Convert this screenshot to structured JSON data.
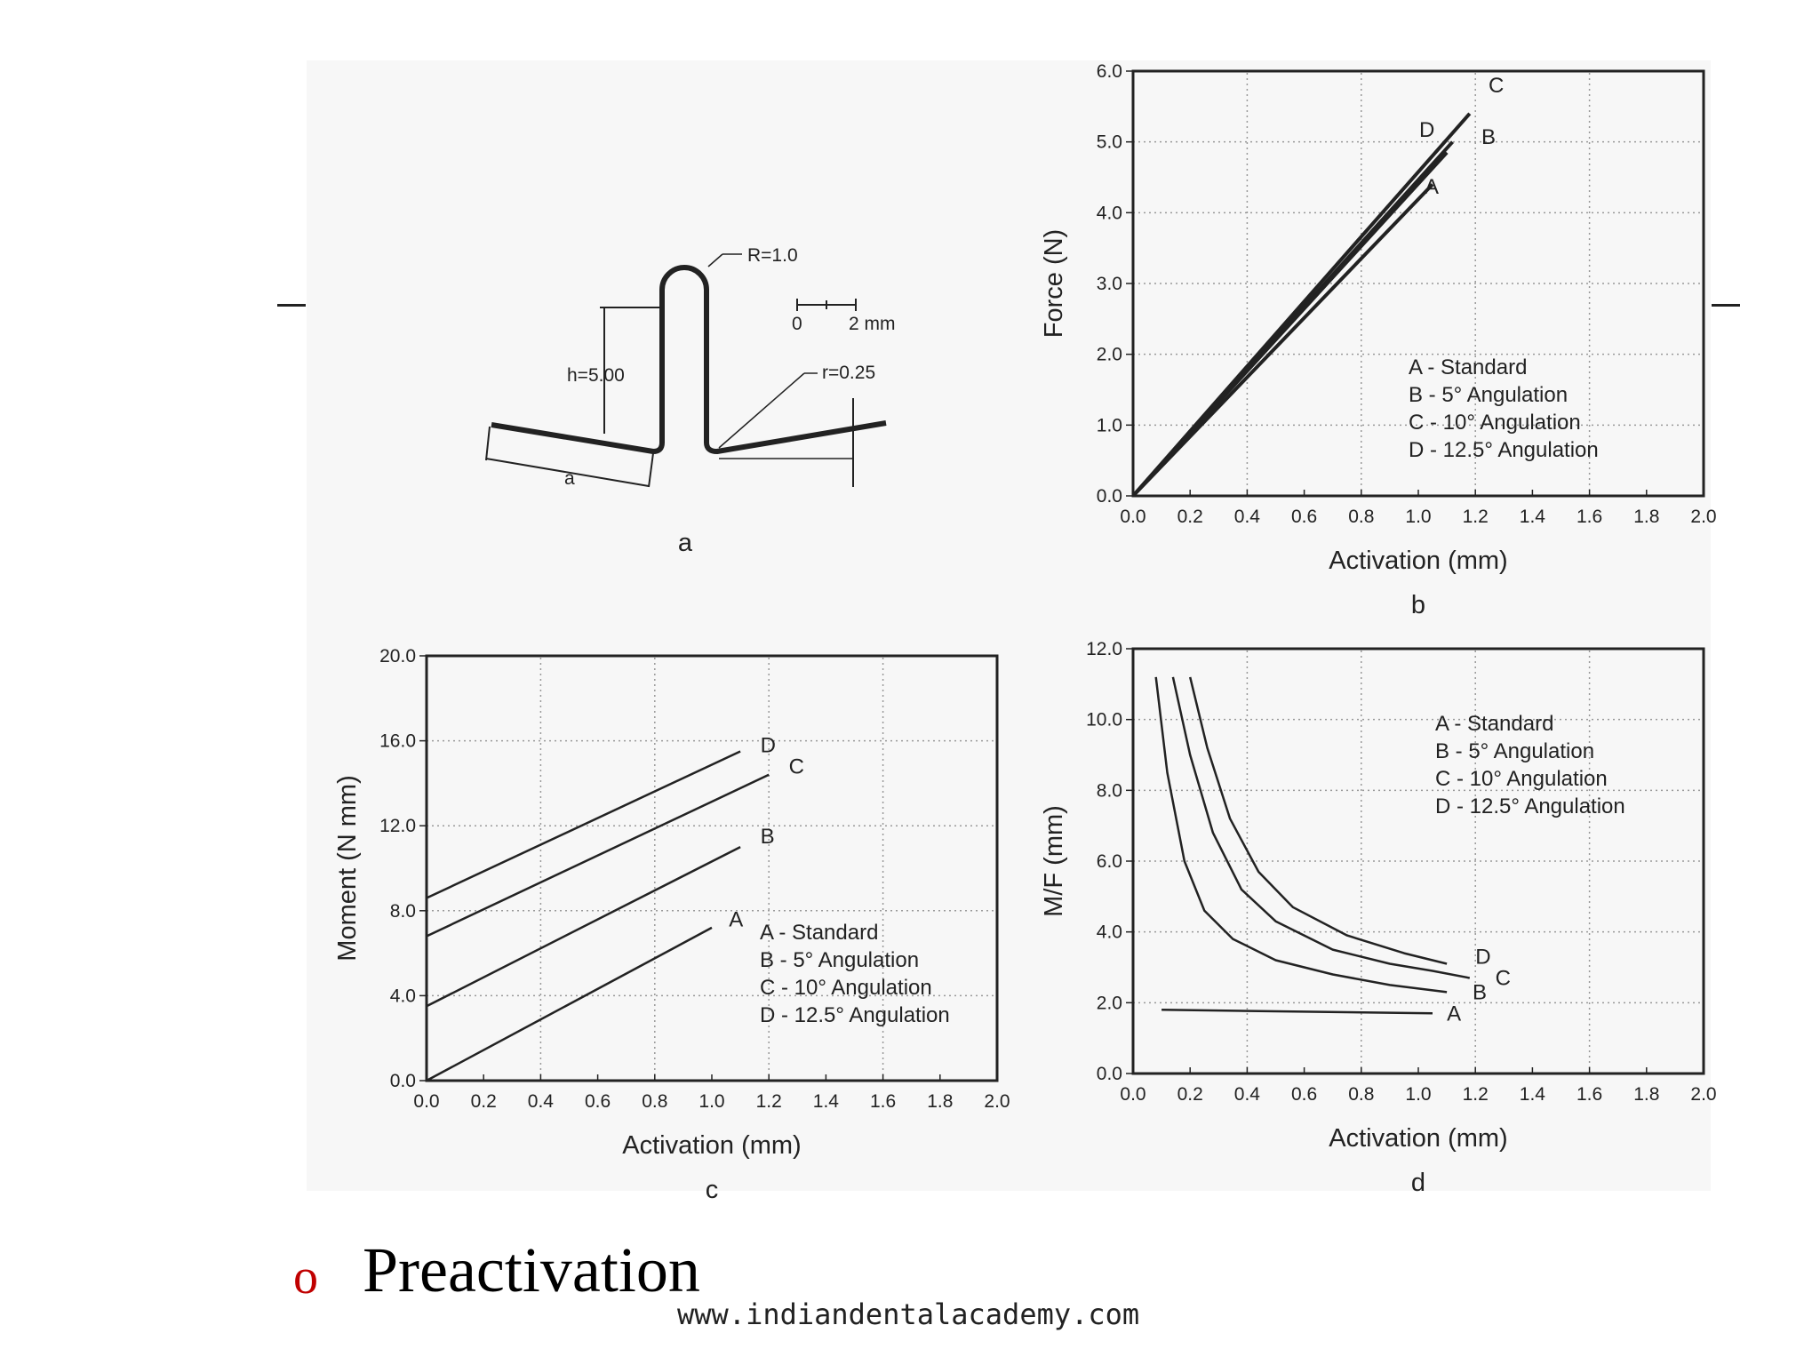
{
  "slide": {
    "bullet_marker": "o",
    "bullet_text": "Preactivation",
    "footer": "www.indiandentalacademy.com",
    "bullet_color": "#c00000"
  },
  "diagram": {
    "label": "a",
    "R_label": "R=1.0",
    "h_label": "h=5.00",
    "r_label": "r=0.25",
    "a_label": "a",
    "scale_zero": "0",
    "scale_label": "2 mm"
  },
  "legend_items": [
    "A - Standard",
    "B - 5° Angulation",
    "C - 10° Angulation",
    "D - 12.5° Angulation"
  ],
  "chart_data": [
    {
      "id": "b",
      "type": "line",
      "sublabel": "b",
      "xlabel": "Activation (mm)",
      "ylabel": "Force (N)",
      "xlim": [
        0,
        2.0
      ],
      "ylim": [
        0,
        6.0
      ],
      "xticks": [
        "0.0",
        "0.2",
        "0.4",
        "0.6",
        "0.8",
        "1.0",
        "1.2",
        "1.4",
        "1.6",
        "1.8",
        "2.0"
      ],
      "yticks": [
        "0.0",
        "1.0",
        "2.0",
        "3.0",
        "4.0",
        "5.0",
        "6.0"
      ],
      "grid": true,
      "legend_position": "right",
      "series": [
        {
          "name": "A",
          "x": [
            0,
            1.05
          ],
          "y": [
            0,
            4.4
          ]
        },
        {
          "name": "B",
          "x": [
            0,
            1.12
          ],
          "y": [
            0,
            5.0
          ]
        },
        {
          "name": "C",
          "x": [
            0,
            1.18
          ],
          "y": [
            0,
            5.4
          ]
        },
        {
          "name": "D",
          "x": [
            0,
            1.1
          ],
          "y": [
            0,
            4.85
          ]
        }
      ]
    },
    {
      "id": "c",
      "type": "line",
      "sublabel": "c",
      "xlabel": "Activation (mm)",
      "ylabel": "Moment (N mm)",
      "xlim": [
        0,
        2.0
      ],
      "ylim": [
        0,
        20.0
      ],
      "xticks": [
        "0.0",
        "0.2",
        "0.4",
        "0.6",
        "0.8",
        "1.0",
        "1.2",
        "1.4",
        "1.6",
        "1.8",
        "2.0"
      ],
      "yticks": [
        "0.0",
        "4.0",
        "8.0",
        "12.0",
        "16.0",
        "20.0"
      ],
      "grid": true,
      "legend_position": "bottom-right",
      "series": [
        {
          "name": "A",
          "x": [
            0,
            1.0
          ],
          "y": [
            0,
            7.2
          ]
        },
        {
          "name": "B",
          "x": [
            0,
            1.1
          ],
          "y": [
            3.5,
            11.0
          ]
        },
        {
          "name": "C",
          "x": [
            0,
            1.2
          ],
          "y": [
            6.8,
            14.4
          ]
        },
        {
          "name": "D",
          "x": [
            0,
            1.1
          ],
          "y": [
            8.6,
            15.5
          ]
        }
      ]
    },
    {
      "id": "d",
      "type": "line",
      "sublabel": "d",
      "xlabel": "Activation (mm)",
      "ylabel": "M/F (mm)",
      "xlim": [
        0,
        2.0
      ],
      "ylim": [
        0,
        12.0
      ],
      "xticks": [
        "0.0",
        "0.2",
        "0.4",
        "0.6",
        "0.8",
        "1.0",
        "1.2",
        "1.4",
        "1.6",
        "1.8",
        "2.0"
      ],
      "yticks": [
        "0.0",
        "2.0",
        "4.0",
        "6.0",
        "8.0",
        "10.0",
        "12.0"
      ],
      "grid": true,
      "legend_position": "top-right",
      "series": [
        {
          "name": "A",
          "x": [
            0.1,
            1.05
          ],
          "y": [
            1.8,
            1.7
          ]
        },
        {
          "name": "B",
          "x": [
            0.08,
            0.12,
            0.18,
            0.25,
            0.35,
            0.5,
            0.7,
            0.9,
            1.1
          ],
          "y": [
            11.2,
            8.5,
            6.0,
            4.6,
            3.8,
            3.2,
            2.8,
            2.5,
            2.3
          ]
        },
        {
          "name": "C",
          "x": [
            0.14,
            0.2,
            0.28,
            0.38,
            0.5,
            0.7,
            0.9,
            1.05,
            1.18
          ],
          "y": [
            11.2,
            9.0,
            6.8,
            5.2,
            4.3,
            3.5,
            3.1,
            2.9,
            2.7
          ]
        },
        {
          "name": "D",
          "x": [
            0.2,
            0.26,
            0.34,
            0.44,
            0.56,
            0.75,
            0.95,
            1.1
          ],
          "y": [
            11.2,
            9.2,
            7.2,
            5.7,
            4.7,
            3.9,
            3.4,
            3.1
          ]
        }
      ]
    }
  ]
}
